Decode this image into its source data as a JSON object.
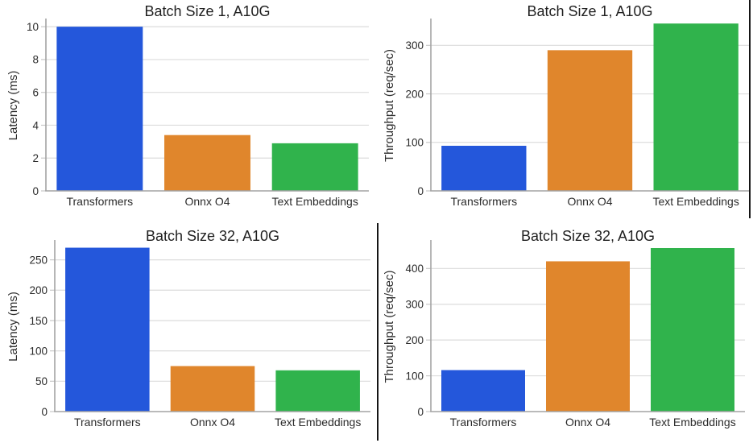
{
  "figure": {
    "background": "#ffffff",
    "border_color": "#151515"
  },
  "palette": {
    "transformers_blue": "#2457DB",
    "onnx_orange": "#E0862C",
    "text_embeddings_green": "#30B34C"
  },
  "chart_data": [
    {
      "type": "bar",
      "title": "Batch Size 1, A10G",
      "xlabel": "",
      "ylabel": "Latency (ms)",
      "categories": [
        "Transformers",
        "Onnx O4",
        "Text Embeddings"
      ],
      "values": [
        10,
        3.4,
        2.9
      ],
      "bar_colors": [
        "#2457DB",
        "#E0862C",
        "#30B34C"
      ],
      "yticks": [
        0,
        2,
        4,
        6,
        8,
        10
      ],
      "ylim": [
        0,
        10.4
      ],
      "grid": "horizontal",
      "legend": "none"
    },
    {
      "type": "bar",
      "title": "Batch Size 1, A10G",
      "xlabel": "",
      "ylabel": "Throughput (req/sec)",
      "categories": [
        "Transformers",
        "Onnx O4",
        "Text Embeddings"
      ],
      "values": [
        93,
        290,
        345
      ],
      "bar_colors": [
        "#2457DB",
        "#E0862C",
        "#30B34C"
      ],
      "yticks": [
        0,
        100,
        200,
        300
      ],
      "ylim": [
        0,
        352
      ],
      "grid": "horizontal",
      "legend": "none"
    },
    {
      "type": "bar",
      "title": "Batch Size 32, A10G",
      "xlabel": "",
      "ylabel": "Latency (ms)",
      "categories": [
        "Transformers",
        "Onnx O4",
        "Text Embeddings"
      ],
      "values": [
        270,
        75,
        68
      ],
      "bar_colors": [
        "#2457DB",
        "#E0862C",
        "#30B34C"
      ],
      "yticks": [
        0,
        50,
        100,
        150,
        200,
        250
      ],
      "ylim": [
        0,
        280
      ],
      "grid": "horizontal",
      "legend": "none"
    },
    {
      "type": "bar",
      "title": "Batch Size 32, A10G",
      "xlabel": "",
      "ylabel": "Throughput (req/sec)",
      "categories": [
        "Transformers",
        "Onnx O4",
        "Text Embeddings"
      ],
      "values": [
        116,
        420,
        457
      ],
      "bar_colors": [
        "#2457DB",
        "#E0862C",
        "#30B34C"
      ],
      "yticks": [
        0,
        100,
        200,
        300,
        400
      ],
      "ylim": [
        0,
        475
      ],
      "grid": "horizontal",
      "legend": "none"
    }
  ]
}
